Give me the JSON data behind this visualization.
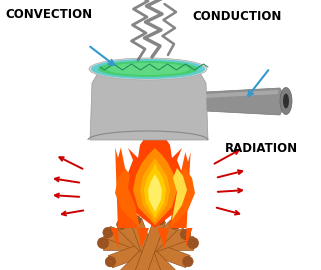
{
  "bg_color": "#ffffff",
  "pot_body_color": "#b8b8b8",
  "pot_rim_color": "#d0d0d0",
  "pot_liquid_color_outer": "#00cccc",
  "pot_liquid_color_inner": "#44dd88",
  "handle_color": "#909090",
  "handle_dark": "#606060",
  "log_color": "#c87830",
  "log_dark": "#8B4513",
  "log_end_color": "#a05828",
  "radiation_arrow_color": "#cc0000",
  "convection_arrow_color": "#3399cc",
  "conduction_arrow_color": "#3399cc",
  "steam_color": "#707070",
  "label_fontsize": 8.5,
  "label_fontweight": "bold",
  "labels": {
    "convection": "CONVECTION",
    "conduction": "CONDUCTION",
    "radiation": "RADIATION"
  }
}
